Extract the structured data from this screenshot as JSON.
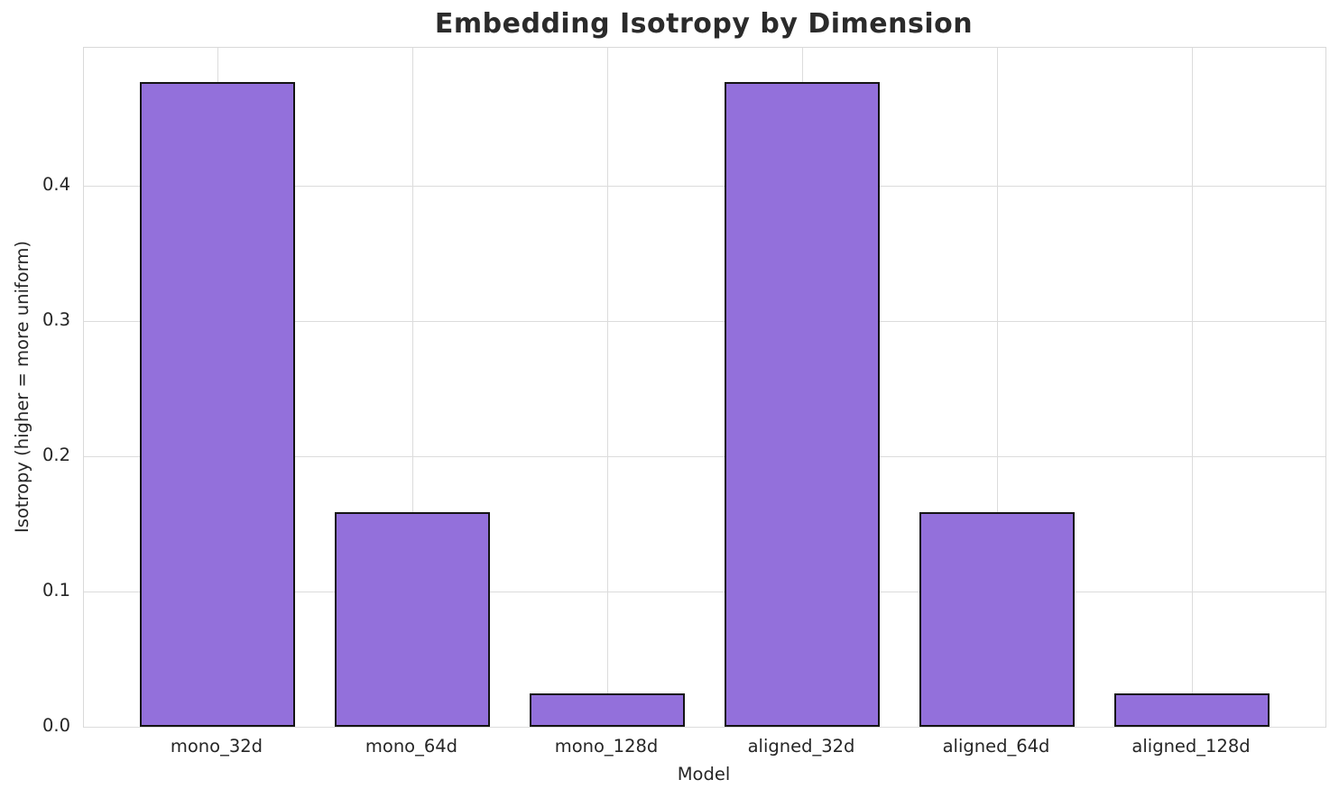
{
  "chart_data": {
    "type": "bar",
    "title": "Embedding Isotropy by Dimension",
    "xlabel": "Model",
    "ylabel": "Isotropy (higher = more uniform)",
    "categories": [
      "mono_32d",
      "mono_64d",
      "mono_128d",
      "aligned_32d",
      "aligned_64d",
      "aligned_128d"
    ],
    "values": [
      0.477,
      0.159,
      0.025,
      0.477,
      0.159,
      0.025
    ],
    "yticks": [
      0.0,
      0.1,
      0.2,
      0.3,
      0.4
    ],
    "ytick_labels": [
      "0.0",
      "0.1",
      "0.2",
      "0.3",
      "0.4"
    ],
    "ylim": [
      0,
      0.502
    ],
    "xlim": [
      -0.685,
      5.685
    ],
    "bar_width_ratio": 0.8,
    "grid": true,
    "legend_position": "none",
    "colors": {
      "bar_fill": "#9370db",
      "bar_edge": "#141414",
      "grid": "#dcdcdc",
      "spine": "#d9d9d9",
      "text": "#262626",
      "title": "#2b2b2b",
      "background": "#ffffff"
    }
  }
}
